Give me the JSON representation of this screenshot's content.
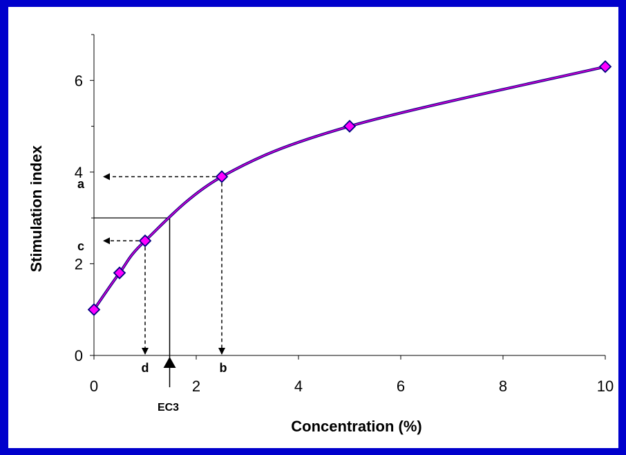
{
  "colors": {
    "background": "#0000cc",
    "panel": "#ffffff",
    "line": "#cc00cc",
    "marker_fill": "#ff00ff",
    "marker_edge": "#000080"
  },
  "chart_data": {
    "type": "line",
    "xlabel": "Concentration (%)",
    "ylabel": "Stimulation index",
    "xlim": [
      0,
      10
    ],
    "ylim": [
      0,
      7
    ],
    "x_ticks": [
      0,
      2,
      4,
      6,
      8,
      10
    ],
    "y_ticks": [
      0,
      2,
      4,
      6
    ],
    "grid": false,
    "series": [
      {
        "points": [
          {
            "x": 0,
            "y": 1.0
          },
          {
            "x": 0.5,
            "y": 1.8
          },
          {
            "x": 1,
            "y": 2.5
          },
          {
            "x": 2.5,
            "y": 3.9
          },
          {
            "x": 5,
            "y": 5.0
          },
          {
            "x": 10,
            "y": 6.3
          }
        ]
      }
    ],
    "annotations": {
      "a": "a",
      "b": "b",
      "c": "c",
      "d": "d",
      "ec3": "EC3",
      "ec3_x": 1.48,
      "ec3_y": 3.0
    }
  }
}
